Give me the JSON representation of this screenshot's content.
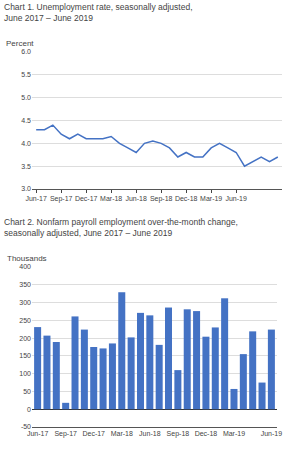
{
  "chart_data": [
    {
      "type": "line",
      "title": "Chart 1. Unemployment rate, seasonally adjusted,\nJune 2017 – June 2019",
      "ylabel": "Percent",
      "categories": [
        "Jun-17",
        null,
        null,
        "Sep-17",
        null,
        null,
        "Dec-17",
        null,
        null,
        "Mar-18",
        null,
        null,
        "Jun-18",
        null,
        null,
        "Sep-18",
        null,
        null,
        "Dec-18",
        null,
        null,
        "Mar-19",
        null,
        null,
        "Jun-19",
        null,
        null,
        null,
        null,
        null
      ],
      "values": [
        4.3,
        4.3,
        4.4,
        4.2,
        4.1,
        4.2,
        4.1,
        4.1,
        4.1,
        4.15,
        4.0,
        3.9,
        3.8,
        4.0,
        4.05,
        4.0,
        3.9,
        3.7,
        3.8,
        3.7,
        3.7,
        3.9,
        4.0,
        3.9,
        3.8,
        3.5,
        3.6,
        3.7,
        3.6,
        3.7
      ],
      "color": "#4472C4",
      "ylim": [
        3.0,
        6.0
      ],
      "yticks": [
        {
          "value": 3,
          "label": "3.0"
        },
        3.5,
        {
          "value": 4,
          "label": "4.0"
        },
        4.5,
        {
          "value": 5,
          "label": "5.0"
        },
        5.5,
        {
          "value": 6,
          "label": "6.0"
        }
      ],
      "grid": true
    },
    {
      "type": "bar",
      "title": "Chart 2. Nonfarm payroll employment over-the-month change,\nseasonally adjusted, June 2017 – June 2019",
      "ylabel": "Thousands",
      "categories": [
        "Jun-17",
        null,
        null,
        "Sep-17",
        null,
        null,
        "Dec-17",
        null,
        null,
        "Mar-18",
        null,
        null,
        "Jun-18",
        null,
        null,
        "Sep-18",
        null,
        null,
        "Dec-18",
        null,
        null,
        "Mar-19",
        null,
        null,
        null,
        "Jun-19"
      ],
      "values": [
        231,
        207,
        189,
        18,
        261,
        224,
        175,
        171,
        185,
        329,
        202,
        271,
        264,
        181,
        286,
        110,
        281,
        276,
        204,
        230,
        312,
        57,
        155,
        219,
        75,
        224
      ],
      "color": "#4472C4",
      "ylim": [
        -50,
        400
      ],
      "yticks": [
        -50,
        0,
        50,
        100,
        150,
        200,
        250,
        300,
        350,
        400
      ],
      "grid": true
    }
  ]
}
